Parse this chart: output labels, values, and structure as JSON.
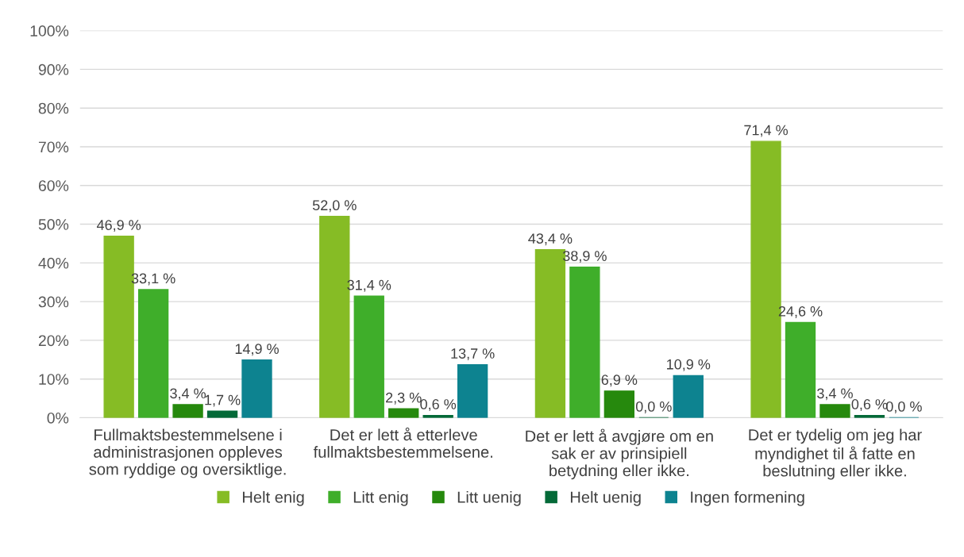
{
  "chart_data": {
    "type": "bar",
    "categories": [
      "Fullmaktsbestemmelsene i\nadministrasjonen oppleves\nsom ryddige og oversiktlige.",
      "Det er lett å etterleve\nfullmaktsbestemmelsene.",
      "Det er lett å avgjøre om en\nsak er av prinsipiell\nbetydning eller ikke.",
      "Det er tydelig om jeg har\nmyndighet til å fatte en\nbeslutning eller ikke."
    ],
    "series": [
      {
        "name": "Helt enig",
        "color": "#86bc25",
        "values": [
          46.9,
          52.0,
          43.4,
          71.4
        ],
        "value_labels": [
          "46,9 %",
          "52,0 %",
          "43,4 %",
          "71,4 %"
        ]
      },
      {
        "name": "Litt enig",
        "color": "#3fae2a",
        "values": [
          33.1,
          31.4,
          38.9,
          24.6
        ],
        "value_labels": [
          "33,1 %",
          "31,4 %",
          "38,9 %",
          "24,6 %"
        ]
      },
      {
        "name": "Litt uenig",
        "color": "#26890d",
        "values": [
          3.4,
          2.3,
          6.9,
          3.4
        ],
        "value_labels": [
          "3,4 %",
          "2,3 %",
          "6,9 %",
          "3,4 %"
        ]
      },
      {
        "name": "Helt uenig",
        "color": "#046a38",
        "values": [
          1.7,
          0.6,
          0.0,
          0.6
        ],
        "value_labels": [
          "1,7 %",
          "0,6 %",
          "0,0 %",
          "0,6 %"
        ]
      },
      {
        "name": "Ingen formening",
        "color": "#0d8390",
        "values": [
          14.9,
          13.7,
          10.9,
          0.0
        ],
        "value_labels": [
          "14,9 %",
          "13,7 %",
          "10,9 %",
          "0,0 %"
        ]
      }
    ],
    "ylim": [
      0,
      100
    ],
    "yticks": [
      {
        "value": 0,
        "label": "0%"
      },
      {
        "value": 10,
        "label": "10%"
      },
      {
        "value": 20,
        "label": "20%"
      },
      {
        "value": 30,
        "label": "30%"
      },
      {
        "value": 40,
        "label": "40%"
      },
      {
        "value": 50,
        "label": "50%"
      },
      {
        "value": 60,
        "label": "60%"
      },
      {
        "value": 70,
        "label": "70%"
      },
      {
        "value": 80,
        "label": "80%"
      },
      {
        "value": 90,
        "label": "90%"
      },
      {
        "value": 100,
        "label": "100%"
      }
    ],
    "grid": "y",
    "legend": "bottom"
  }
}
